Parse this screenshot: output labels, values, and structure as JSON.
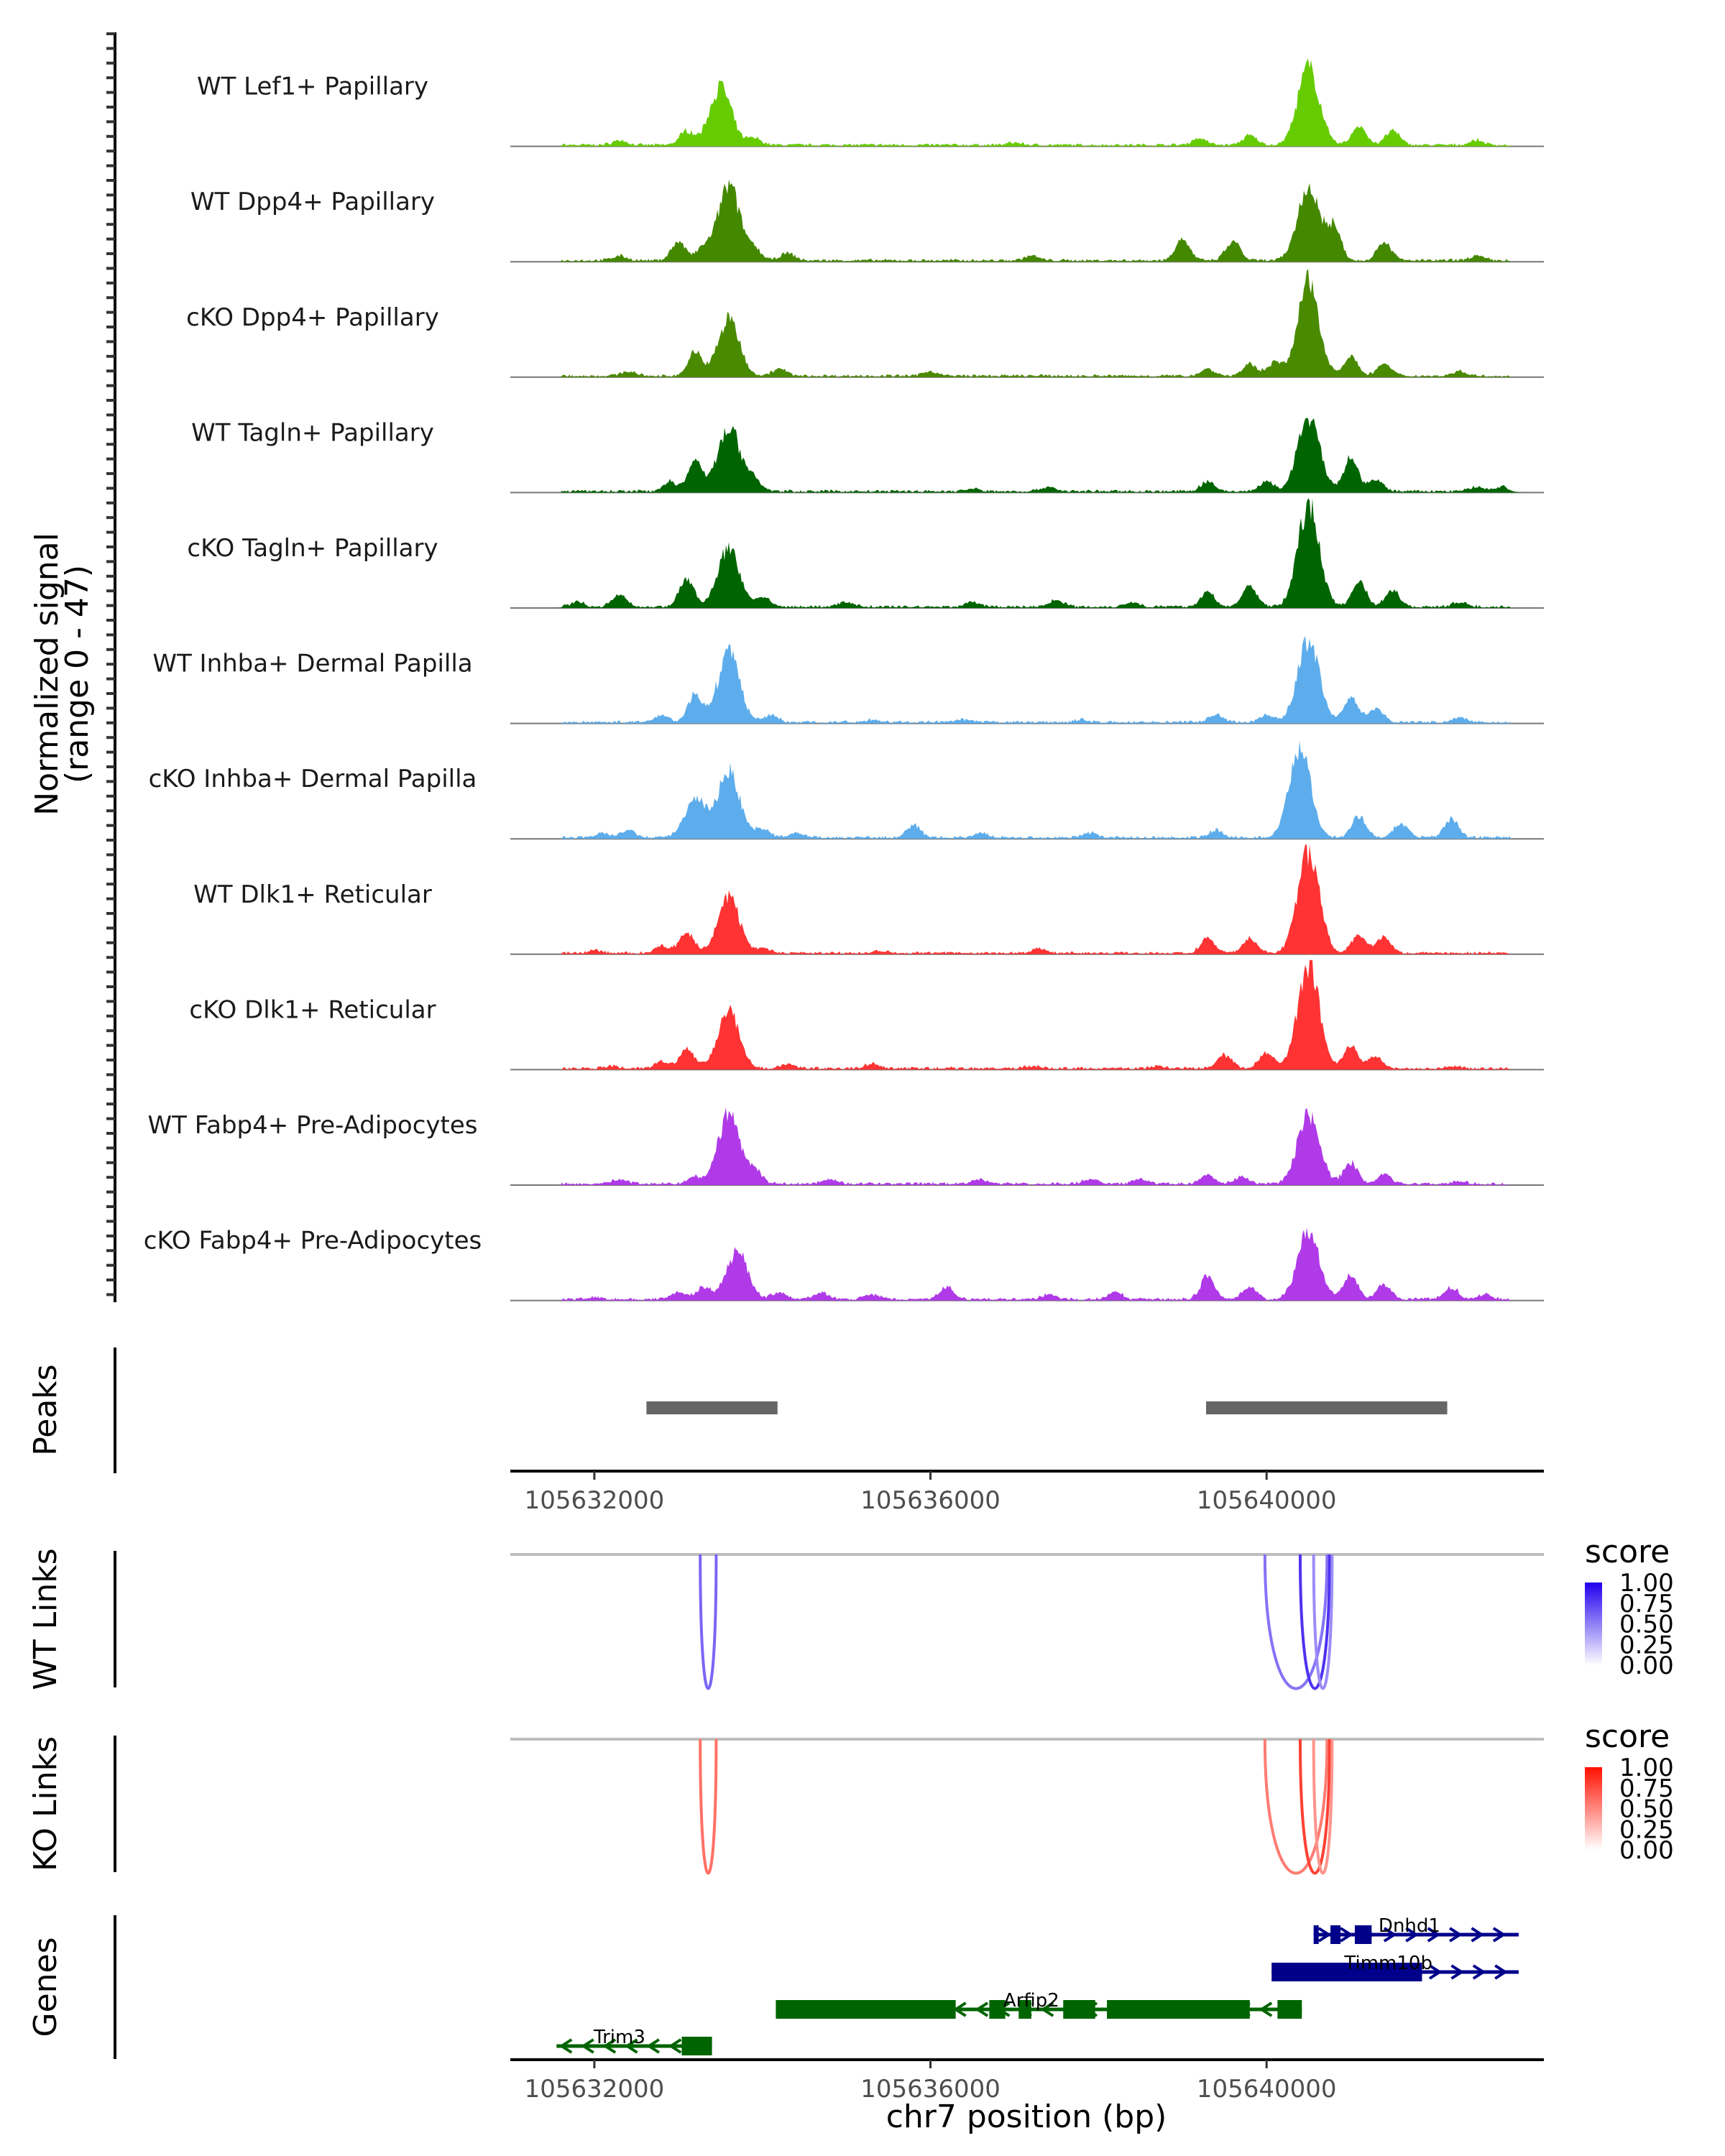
{
  "chart_data": {
    "type": "area",
    "title": "",
    "region": {
      "chrom": "chr7",
      "start": 105631000,
      "end": 105643300
    },
    "xlabel": "chr7 position (bp)",
    "x_ticks": [
      105632000,
      105636000,
      105640000
    ],
    "x_tick_labels": [
      "105632000",
      "105636000",
      "105640000"
    ],
    "coverage": {
      "ylabel": "Normalized signal",
      "ylabel_range": "(range 0 - 47)",
      "ylim": [
        0,
        47
      ],
      "tracks": [
        {
          "name": "WT Lef1+ Papillary",
          "color": "#66CC00",
          "peaks": [
            [
              105632300,
              2
            ],
            [
              105633100,
              6
            ],
            [
              105633500,
              25
            ],
            [
              105633900,
              3
            ],
            [
              105637000,
              1
            ],
            [
              105639200,
              3
            ],
            [
              105639800,
              4
            ],
            [
              105640500,
              33
            ],
            [
              105641100,
              8
            ],
            [
              105641500,
              6
            ],
            [
              105642500,
              2
            ]
          ]
        },
        {
          "name": "WT Dpp4+ Papillary",
          "color": "#448800",
          "peaks": [
            [
              105632300,
              2
            ],
            [
              105633000,
              8
            ],
            [
              105633300,
              5
            ],
            [
              105633600,
              32
            ],
            [
              105633900,
              5
            ],
            [
              105634300,
              3
            ],
            [
              105637200,
              2
            ],
            [
              105639000,
              9
            ],
            [
              105639600,
              8
            ],
            [
              105640500,
              32
            ],
            [
              105640800,
              14
            ],
            [
              105641400,
              8
            ],
            [
              105642500,
              2
            ]
          ]
        },
        {
          "name": "cKO Dpp4+ Papillary",
          "color": "#4A8A00",
          "peaks": [
            [
              105632400,
              2
            ],
            [
              105633200,
              10
            ],
            [
              105633600,
              24
            ],
            [
              105634200,
              3
            ],
            [
              105636000,
              2
            ],
            [
              105639300,
              3
            ],
            [
              105639800,
              5
            ],
            [
              105640100,
              6
            ],
            [
              105640500,
              40
            ],
            [
              105641000,
              8
            ],
            [
              105641400,
              5
            ],
            [
              105642300,
              2
            ]
          ]
        },
        {
          "name": "WT Tagln+ Papillary",
          "color": "#006400",
          "peaks": [
            [
              105632900,
              4
            ],
            [
              105633200,
              13
            ],
            [
              105633600,
              28
            ],
            [
              105633900,
              5
            ],
            [
              105636500,
              1
            ],
            [
              105637400,
              2
            ],
            [
              105639300,
              4
            ],
            [
              105640000,
              4
            ],
            [
              105640500,
              32
            ],
            [
              105641000,
              14
            ],
            [
              105641300,
              5
            ],
            [
              105642500,
              2
            ],
            [
              105642800,
              2
            ]
          ]
        },
        {
          "name": "cKO Tagln+ Papillary",
          "color": "#006400",
          "peaks": [
            [
              105631800,
              2
            ],
            [
              105632300,
              5
            ],
            [
              105633100,
              12
            ],
            [
              105633600,
              25
            ],
            [
              105634000,
              4
            ],
            [
              105635000,
              2
            ],
            [
              105636500,
              2
            ],
            [
              105637500,
              3
            ],
            [
              105638400,
              2
            ],
            [
              105639300,
              6
            ],
            [
              105639800,
              9
            ],
            [
              105640500,
              43
            ],
            [
              105641100,
              11
            ],
            [
              105641500,
              7
            ],
            [
              105642300,
              2
            ]
          ]
        },
        {
          "name": "WT Inhba+ Dermal Papilla",
          "color": "#5DADEC",
          "peaks": [
            [
              105632800,
              3
            ],
            [
              105633200,
              12
            ],
            [
              105633600,
              30
            ],
            [
              105634100,
              3
            ],
            [
              105635300,
              1
            ],
            [
              105636400,
              1
            ],
            [
              105637800,
              1
            ],
            [
              105639400,
              3
            ],
            [
              105640000,
              3
            ],
            [
              105640500,
              36
            ],
            [
              105641000,
              11
            ],
            [
              105641300,
              6
            ],
            [
              105642300,
              2
            ]
          ]
        },
        {
          "name": "cKO Inhba+ Dermal Papilla",
          "color": "#5DADEC",
          "peaks": [
            [
              105632100,
              2
            ],
            [
              105632400,
              3
            ],
            [
              105633200,
              16
            ],
            [
              105633600,
              29
            ],
            [
              105634000,
              4
            ],
            [
              105634400,
              2
            ],
            [
              105635800,
              5
            ],
            [
              105636600,
              2
            ],
            [
              105637900,
              2
            ],
            [
              105639400,
              3
            ],
            [
              105640400,
              38
            ],
            [
              105641100,
              9
            ],
            [
              105641600,
              6
            ],
            [
              105642200,
              8
            ]
          ]
        },
        {
          "name": "WT Dlk1+ Reticular",
          "color": "#FF3333",
          "peaks": [
            [
              105632000,
              1
            ],
            [
              105632800,
              3
            ],
            [
              105633100,
              9
            ],
            [
              105633600,
              24
            ],
            [
              105634000,
              2
            ],
            [
              105635400,
              1
            ],
            [
              105637300,
              2
            ],
            [
              105639300,
              6
            ],
            [
              105639800,
              6
            ],
            [
              105640500,
              44
            ],
            [
              105641100,
              8
            ],
            [
              105641400,
              7
            ]
          ]
        },
        {
          "name": "cKO Dlk1+ Reticular",
          "color": "#FF3333",
          "peaks": [
            [
              105632200,
              1
            ],
            [
              105632800,
              3
            ],
            [
              105633100,
              9
            ],
            [
              105633600,
              25
            ],
            [
              105634300,
              2
            ],
            [
              105635300,
              2
            ],
            [
              105637200,
              1
            ],
            [
              105638700,
              1
            ],
            [
              105639500,
              6
            ],
            [
              105640000,
              7
            ],
            [
              105640500,
              44
            ],
            [
              105641000,
              10
            ],
            [
              105641300,
              5
            ],
            [
              105642200,
              1
            ]
          ]
        },
        {
          "name": "WT Fabp4+ Pre-Adipocytes",
          "color": "#B03AE8",
          "peaks": [
            [
              105632300,
              2
            ],
            [
              105633200,
              3
            ],
            [
              105633600,
              30
            ],
            [
              105633900,
              6
            ],
            [
              105634800,
              2
            ],
            [
              105636600,
              2
            ],
            [
              105637900,
              2
            ],
            [
              105638500,
              2
            ],
            [
              105639300,
              4
            ],
            [
              105639700,
              3
            ],
            [
              105640500,
              30
            ],
            [
              105641000,
              9
            ],
            [
              105641400,
              4
            ],
            [
              105642300,
              1
            ]
          ]
        },
        {
          "name": "cKO Fabp4+ Pre-Adipocytes",
          "color": "#B03AE8",
          "peaks": [
            [
              105632000,
              1
            ],
            [
              105633000,
              3
            ],
            [
              105633300,
              5
            ],
            [
              105633700,
              20
            ],
            [
              105634200,
              3
            ],
            [
              105634700,
              3
            ],
            [
              105635300,
              2
            ],
            [
              105636200,
              5
            ],
            [
              105637400,
              2
            ],
            [
              105638200,
              3
            ],
            [
              105639300,
              10
            ],
            [
              105639800,
              5
            ],
            [
              105640500,
              30
            ],
            [
              105641000,
              10
            ],
            [
              105641400,
              6
            ],
            [
              105642200,
              5
            ],
            [
              105642600,
              2
            ]
          ]
        }
      ]
    },
    "peaks_track": {
      "label": "Peaks",
      "color": "#666666",
      "ranges": [
        [
          105632620,
          105634180
        ],
        [
          105639280,
          105642150
        ]
      ]
    },
    "links": [
      {
        "label": "WT Links",
        "legend_title": "score",
        "color_high": "#2200EE",
        "legend_ticks": [
          "1.00",
          "0.75",
          "0.50",
          "0.25",
          "0.00"
        ],
        "arcs": [
          {
            "start": 105633260,
            "end": 105633450,
            "score": 0.6
          },
          {
            "start": 105639980,
            "end": 105640720,
            "score": 0.55
          },
          {
            "start": 105640400,
            "end": 105640750,
            "score": 0.8
          },
          {
            "start": 105640560,
            "end": 105640780,
            "score": 0.45
          }
        ]
      },
      {
        "label": "KO Links",
        "legend_title": "score",
        "color_high": "#FF1100",
        "legend_ticks": [
          "1.00",
          "0.75",
          "0.50",
          "0.25",
          "0.00"
        ],
        "arcs": [
          {
            "start": 105633260,
            "end": 105633450,
            "score": 0.6
          },
          {
            "start": 105639980,
            "end": 105640720,
            "score": 0.55
          },
          {
            "start": 105640400,
            "end": 105640750,
            "score": 0.8
          },
          {
            "start": 105640560,
            "end": 105640780,
            "score": 0.45
          }
        ]
      }
    ],
    "genes": {
      "label": "Genes",
      "items": [
        {
          "name": "Dnhd1",
          "strand": "+",
          "color": "#00008B",
          "row": 0,
          "start": 105640560,
          "end": 105643000,
          "exons": [
            [
              105640560,
              105640620
            ],
            [
              105640760,
              105640880
            ],
            [
              105641050,
              105641250
            ]
          ]
        },
        {
          "name": "Timm10b",
          "strand": "+",
          "color": "#00008B",
          "row": 1,
          "start": 105640060,
          "end": 105643000,
          "exons": [
            [
              105640060,
              105641850
            ]
          ]
        },
        {
          "name": "Arfip2",
          "strand": "-",
          "color": "#006400",
          "row": 2,
          "start": 105634160,
          "end": 105640420,
          "exons": [
            [
              105634160,
              105636300
            ],
            [
              105636700,
              105636890
            ],
            [
              105637050,
              105637200
            ],
            [
              105637580,
              105637960
            ],
            [
              105638100,
              105639800
            ],
            [
              105640130,
              105640420
            ]
          ]
        },
        {
          "name": "Trim3",
          "strand": "-",
          "color": "#006400",
          "row": 3,
          "start": 105631550,
          "end": 105633400,
          "exons": [
            [
              105633040,
              105633400
            ]
          ]
        }
      ]
    }
  }
}
